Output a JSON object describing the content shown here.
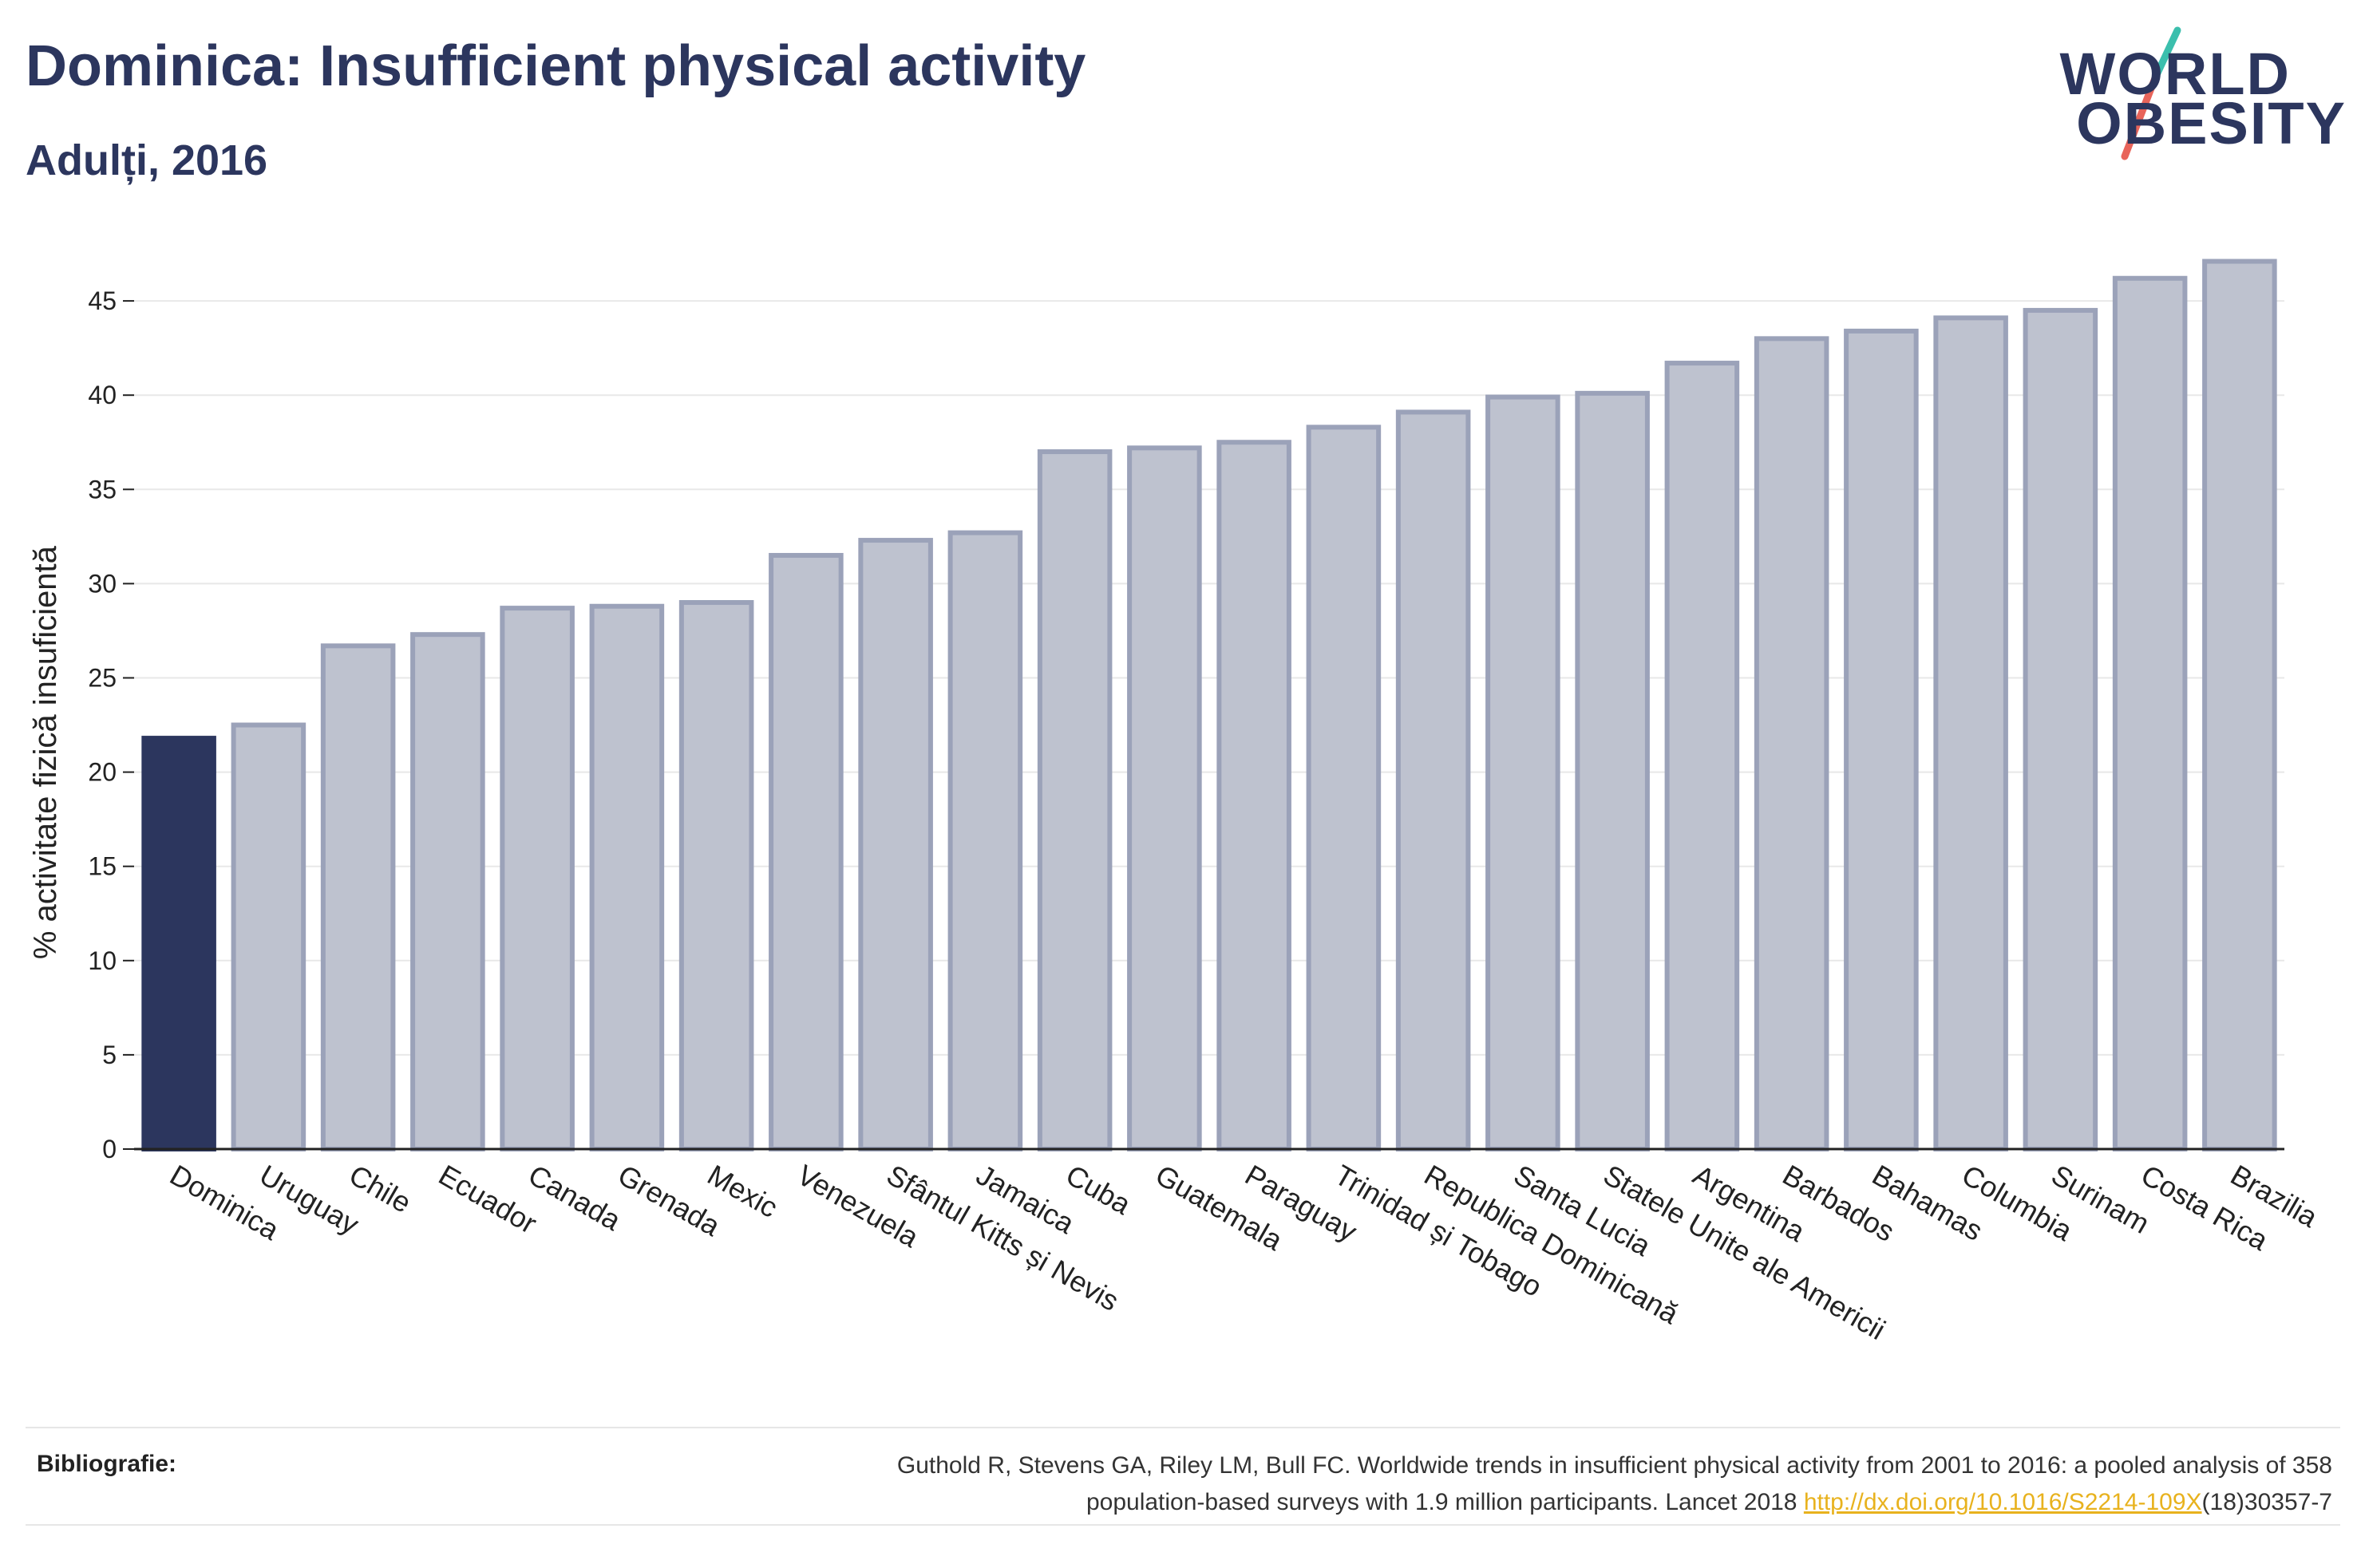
{
  "header": {
    "title": "Dominica: Insufficient physical activity",
    "subtitle": "Adulți, 2016"
  },
  "logo": {
    "line1": "WORLD",
    "line2": "OBESITY"
  },
  "colors": {
    "highlight": "#2c365e",
    "bar_fill": "#bec2cf",
    "bar_stroke": "#9ba2b9",
    "slash_teal": "#3bbfad",
    "slash_coral": "#e8645a",
    "link": "#e8b21e"
  },
  "chart_data": {
    "type": "bar",
    "ylabel": "% activitate fizică insuficientă",
    "ylim": [
      0,
      48
    ],
    "yticks": [
      0,
      5,
      10,
      15,
      20,
      25,
      30,
      35,
      40,
      45
    ],
    "grid": true,
    "highlight_category": "Dominica",
    "categories": [
      "Dominica",
      "Uruguay",
      "Chile",
      "Ecuador",
      "Canada",
      "Grenada",
      "Mexic",
      "Venezuela",
      "Sfântul Kitts și Nevis",
      "Jamaica",
      "Cuba",
      "Guatemala",
      "Paraguay",
      "Trinidad și Tobago",
      "Republica Dominicană",
      "Santa Lucia",
      "Statele Unite ale Americii",
      "Argentina",
      "Barbados",
      "Bahamas",
      "Columbia",
      "Surinam",
      "Costa Rica",
      "Brazilia"
    ],
    "values": [
      21.8,
      22.5,
      26.7,
      27.3,
      28.7,
      28.8,
      29.0,
      31.5,
      32.3,
      32.7,
      37.0,
      37.2,
      37.5,
      38.3,
      39.1,
      39.9,
      40.1,
      41.7,
      43.0,
      43.4,
      44.1,
      44.5,
      46.2,
      47.1
    ]
  },
  "footer": {
    "label": "Bibliografie:",
    "line1": "Guthold R, Stevens GA, Riley LM, Bull FC. Worldwide trends in insufficient physical activity from 2001 to 2016: a pooled analysis of 358",
    "line2_pre": "population-based surveys with 1.9 million participants. Lancet 2018 ",
    "link": "http://dx.doi.org/10.1016/S2214-109X",
    "line2_post": "(18)30357-7"
  }
}
